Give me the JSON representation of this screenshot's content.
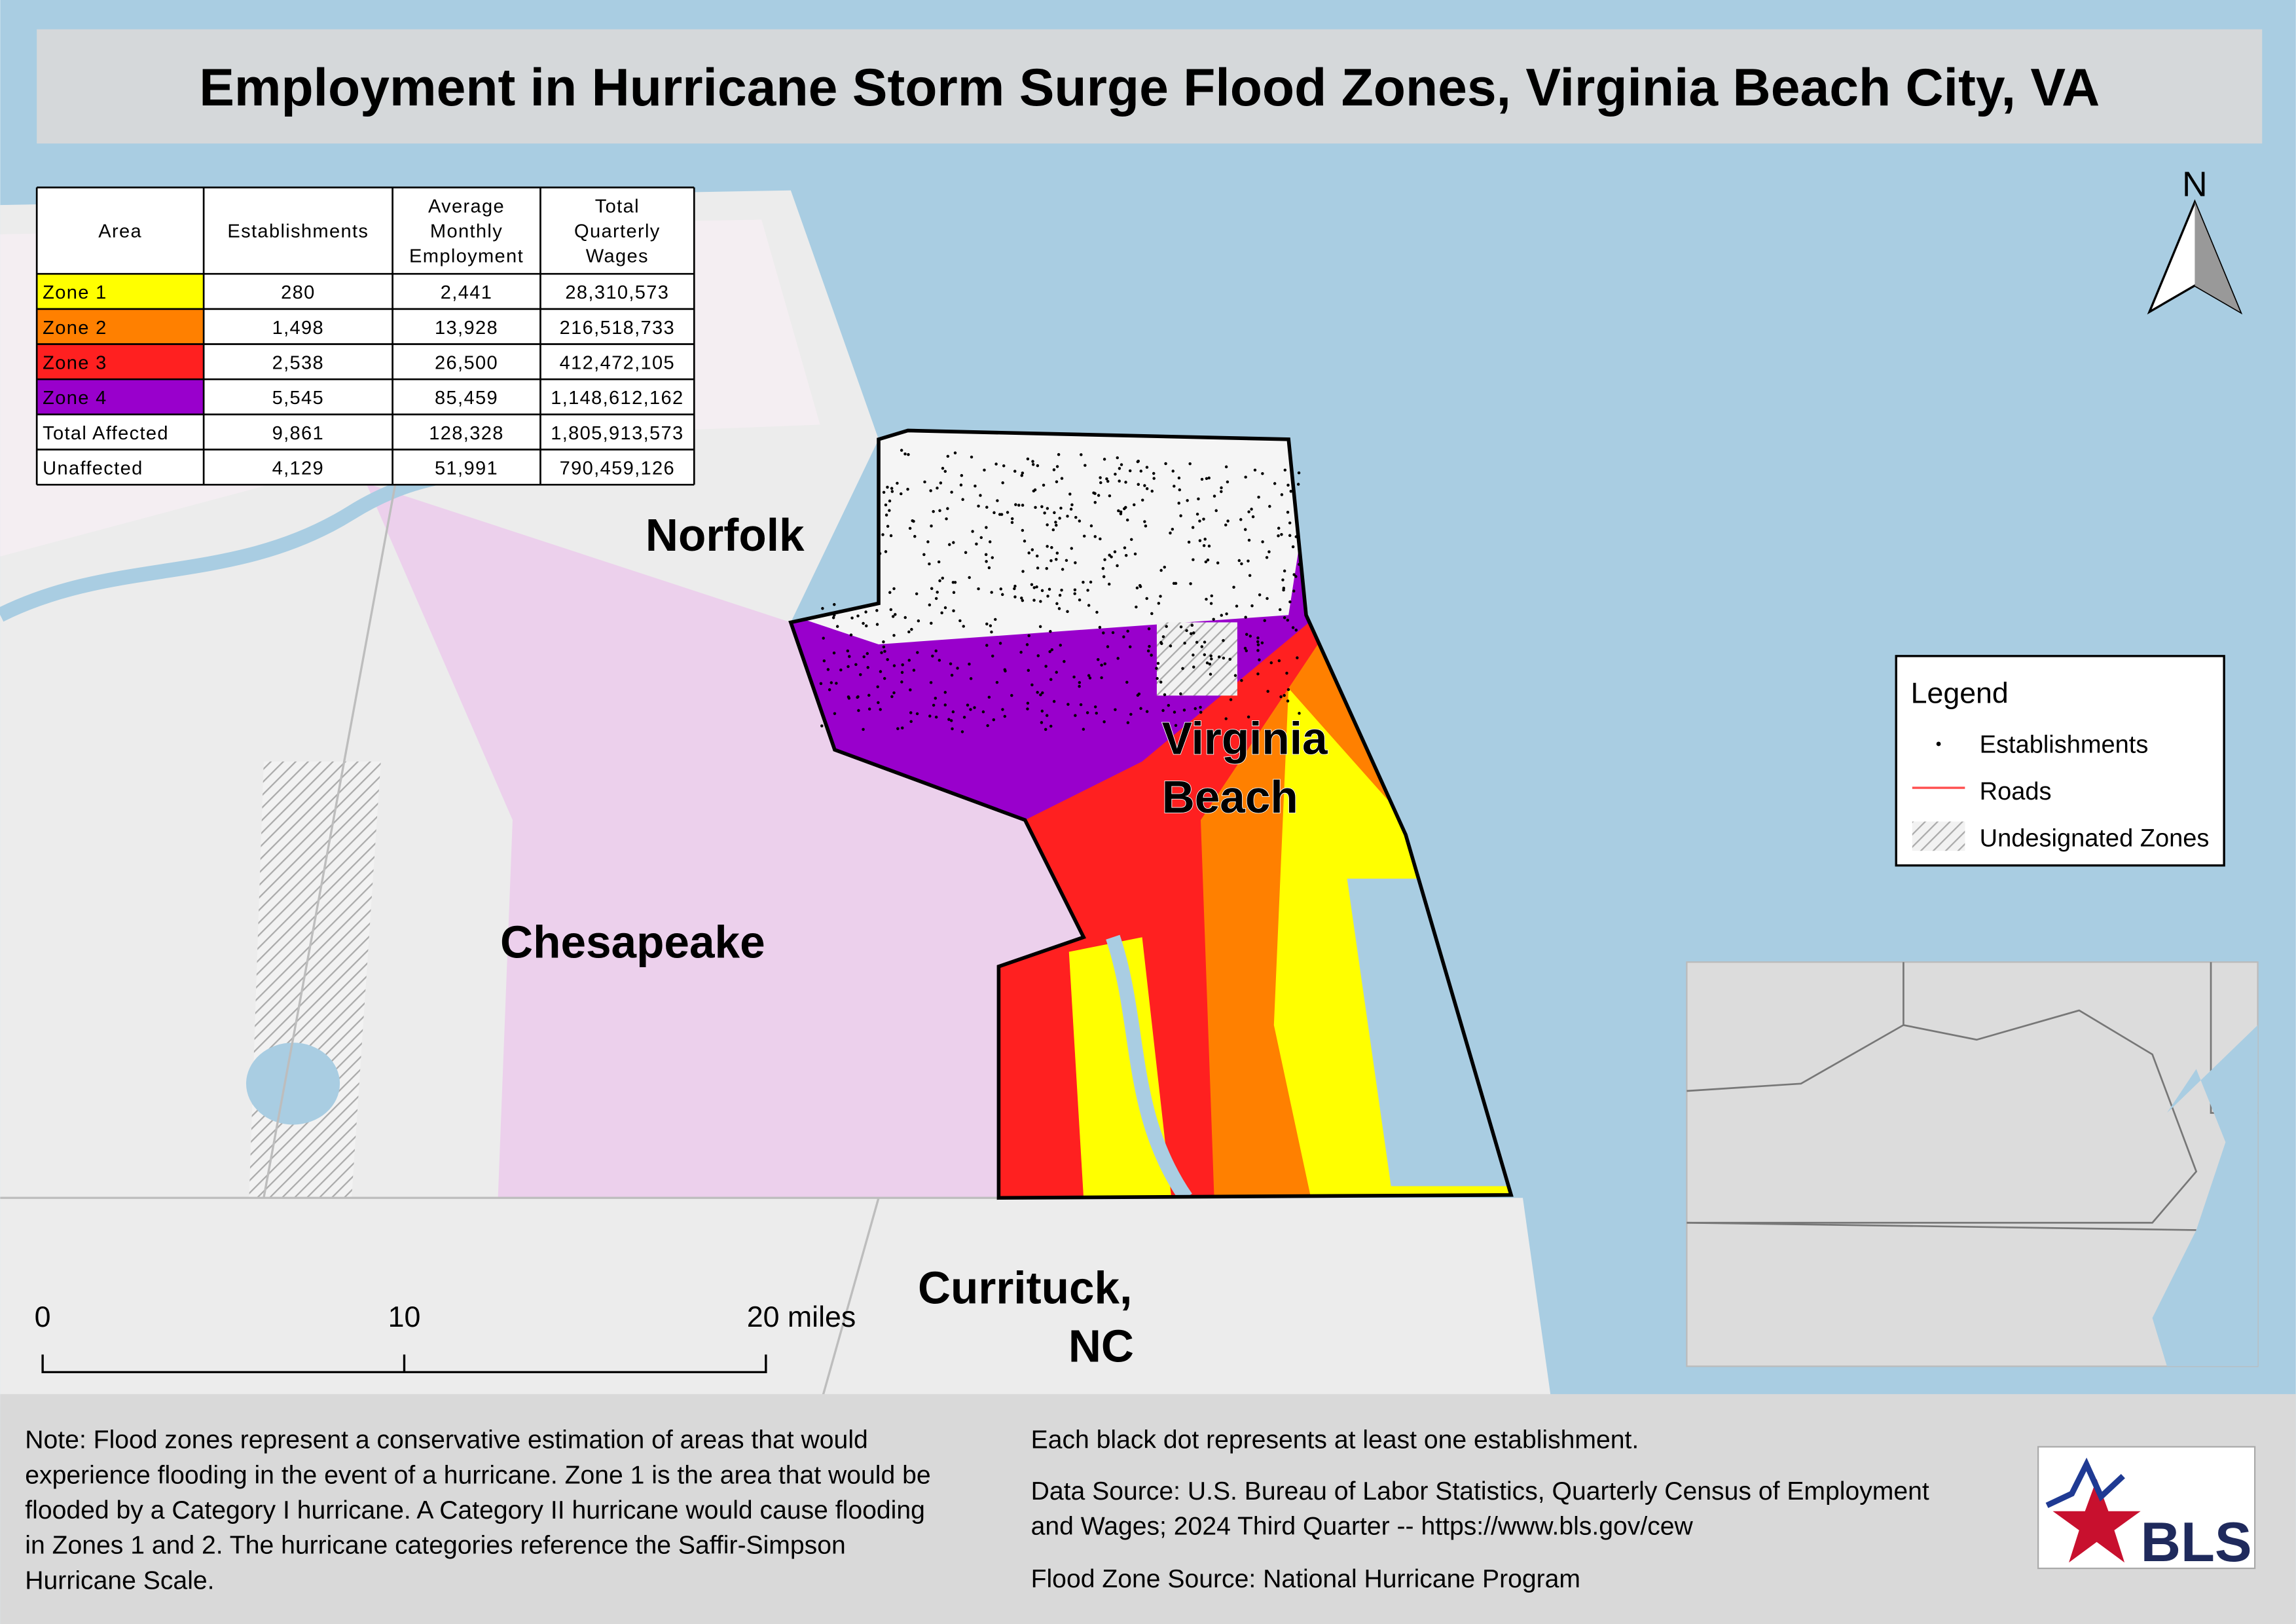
{
  "title": "Employment in Hurricane Storm Surge Flood Zones, Virginia Beach City, VA",
  "table": {
    "header": [
      [
        "Area"
      ],
      [
        "Establishments"
      ],
      [
        "Average",
        "Monthly",
        "Employment"
      ],
      [
        "Total",
        "Quarterly",
        "Wages"
      ]
    ],
    "rows": [
      [
        "Zone 1",
        "280",
        "2,441",
        "28,310,573"
      ],
      [
        "Zone 2",
        "1,498",
        "13,928",
        "216,518,733"
      ],
      [
        "Zone 3",
        "2,538",
        "26,500",
        "412,472,105"
      ],
      [
        "Zone 4",
        "5,545",
        "85,459",
        "1,148,612,162"
      ],
      [
        "Total Affected",
        "9,861",
        "128,328",
        "1,805,913,573"
      ],
      [
        "Unaffected",
        "4,129",
        "51,991",
        "790,459,126"
      ]
    ]
  },
  "places": [
    [
      "Norfolk"
    ],
    [
      "Virginia",
      "Beach"
    ],
    [
      "Chesapeake"
    ],
    [
      "Currituck,",
      "NC"
    ]
  ],
  "legend": {
    "title": "Legend",
    "items": [
      "Establishments",
      "Roads",
      "Undesignated Zones"
    ]
  },
  "north_arrow": "N",
  "scale_bar": [
    "0",
    "10",
    "20 miles"
  ],
  "notes": {
    "left": [
      "Note: Flood zones represent a conservative estimation of areas that would",
      "experience flooding in the event of a hurricane. Zone 1 is the area that would be",
      "flooded by a Category I hurricane. A Category II hurricane would cause flooding",
      "in Zones 1 and 2. The hurricane categories reference the Saffir-Simpson",
      "Hurricane Scale."
    ],
    "right": [
      "Each black dot represents at least one establishment.",
      "Data Source: U.S. Bureau of Labor Statistics, Quarterly Census of Employment",
      "and Wages; 2024 Third Quarter -- https://www.bls.gov/cew",
      "Flood Zone Source: National Hurricane Program"
    ]
  },
  "logo": "BLS"
}
